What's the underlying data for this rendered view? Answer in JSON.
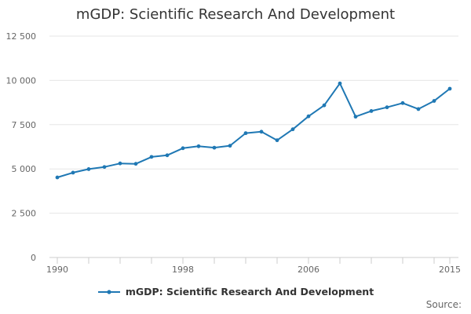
{
  "chart_data": {
    "type": "line",
    "title": "mGDP: Scientific Research And Development",
    "xlabel": "",
    "ylabel": "",
    "xlim": [
      1990,
      2015
    ],
    "ylim": [
      0,
      12500
    ],
    "y_ticks": [
      0,
      2500,
      5000,
      7500,
      10000,
      12500
    ],
    "y_tick_labels": [
      "0",
      "2 500",
      "5 000",
      "7 500",
      "10 000",
      "12 500"
    ],
    "x_ticks": [
      1990,
      1998,
      2006,
      2015
    ],
    "x_tick_labels": [
      "1990",
      "1998",
      "2006",
      "2015"
    ],
    "grid": true,
    "legend_position": "bottom",
    "series": [
      {
        "name": "mGDP: Scientific Research And Development",
        "color": "#1f78b4",
        "x": [
          1990,
          1991,
          1992,
          1993,
          1994,
          1995,
          1996,
          1997,
          1998,
          1999,
          2000,
          2001,
          2002,
          2003,
          2004,
          2005,
          2006,
          2007,
          2008,
          2009,
          2010,
          2011,
          2012,
          2013,
          2014,
          2015
        ],
        "values": [
          4520,
          4790,
          4990,
          5110,
          5310,
          5290,
          5680,
          5770,
          6170,
          6280,
          6200,
          6310,
          7020,
          7100,
          6620,
          7240,
          7970,
          8590,
          9830,
          7950,
          8270,
          8480,
          8720,
          8380,
          8840,
          9530
        ]
      }
    ]
  },
  "source_label": "Source:"
}
